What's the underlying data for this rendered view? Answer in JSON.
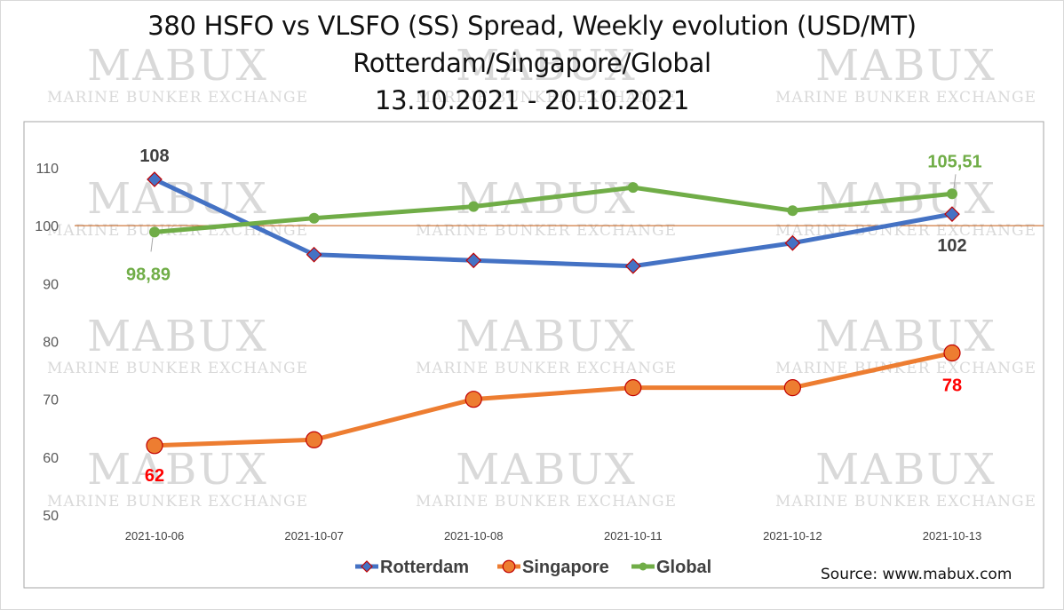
{
  "title": {
    "line1": "380 HSFO vs VLSFO (SS) Spread, Weekly evolution (USD/MT)",
    "line2": "Rotterdam/Singapore/Global",
    "line3": "13.10.2021 - 20.10.2021"
  },
  "watermark": {
    "brand": "MABUX",
    "tagline": "MARINE BUNKER EXCHANGE"
  },
  "source": "Source: www.mabux.com",
  "chart_data": {
    "type": "line",
    "categories": [
      "2021-10-06",
      "2021-10-07",
      "2021-10-08",
      "2021-10-11",
      "2021-10-12",
      "2021-10-13"
    ],
    "ylim": [
      50,
      110
    ],
    "yticks": [
      50,
      60,
      70,
      80,
      90,
      100,
      110
    ],
    "reference_line": 100,
    "grid": false,
    "legend": "bottom",
    "series": [
      {
        "name": "Rotterdam",
        "color": "#4472c4",
        "marker": "diamond",
        "values": [
          108,
          95,
          94,
          93,
          97,
          102
        ],
        "labels": [
          {
            "index": 0,
            "text": "108",
            "color": "#404040"
          },
          {
            "index": 5,
            "text": "102",
            "color": "#404040"
          }
        ]
      },
      {
        "name": "Singapore",
        "color": "#ed7d31",
        "marker": "circle",
        "values": [
          62,
          63,
          70,
          72,
          72,
          78
        ],
        "labels": [
          {
            "index": 0,
            "text": "62",
            "color": "#ff0000"
          },
          {
            "index": 5,
            "text": "78",
            "color": "#ff0000"
          }
        ]
      },
      {
        "name": "Global",
        "color": "#70ad47",
        "marker": "dot",
        "values": [
          98.89,
          101.3,
          103.3,
          106.6,
          102.6,
          105.51
        ],
        "labels": [
          {
            "index": 0,
            "text": "98,89",
            "color": "#70ad47"
          },
          {
            "index": 5,
            "text": "105,51",
            "color": "#70ad47"
          }
        ]
      }
    ]
  }
}
